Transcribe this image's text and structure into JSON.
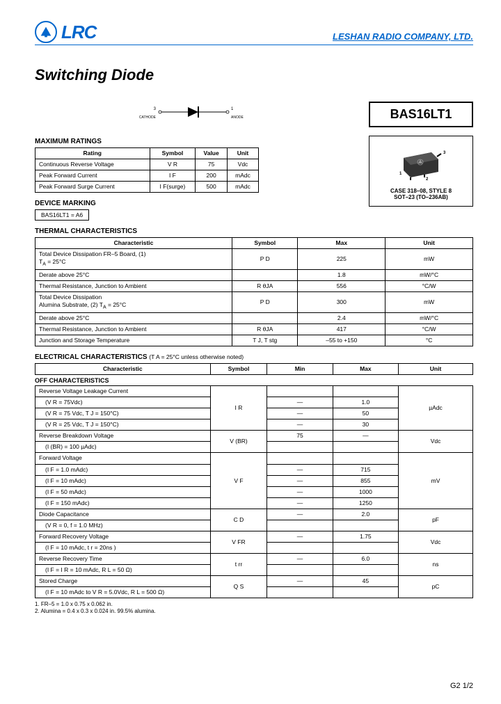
{
  "header": {
    "logo_text": "LRC",
    "company": "LESHAN RADIO COMPANY, LTD."
  },
  "title": "Switching Diode",
  "part_number": "BAS16LT1",
  "diode": {
    "cathode": "CATHODE",
    "anode": "ANODE",
    "pin3": "3",
    "pin1": "1"
  },
  "case": {
    "line1": "CASE 318–08, STYLE 8",
    "line2": "SOT–23   (TO–236AB)",
    "pins": "3"
  },
  "max_ratings": {
    "title": "MAXIMUM RATINGS",
    "headers": [
      "Rating",
      "Symbol",
      "Value",
      "Unit"
    ],
    "rows": [
      [
        "Continuous Reverse Voltage",
        "V R",
        "75",
        "Vdc"
      ],
      [
        "Peak Forward Current",
        "I F",
        "200",
        "mAdc"
      ],
      [
        "Peak Forward Surge Current",
        "I F(surge)",
        "500",
        "mAdc"
      ]
    ]
  },
  "device_marking": {
    "title": "DEVICE MARKING",
    "text": "BAS16LT1 = A6"
  },
  "thermal": {
    "title": "THERMAL CHARACTERISTICS",
    "headers": [
      "Characteristic",
      "Symbol",
      "Max",
      "Unit"
    ],
    "rows": [
      [
        "Total Device Dissipation FR–5 Board, (1)\nT_A = 25°C",
        "P D",
        "225",
        "mW"
      ],
      [
        "Derate above 25°C",
        "",
        "1.8",
        "mW/°C"
      ],
      [
        "Thermal Resistance, Junction to Ambient",
        "R θJA",
        "556",
        "°C/W"
      ],
      [
        "Total Device Dissipation\nAlumina Substrate, (2) T_A = 25°C",
        "P D",
        "300",
        "mW"
      ],
      [
        "Derate above 25°C",
        "",
        "2.4",
        "mW/°C"
      ],
      [
        "Thermal Resistance, Junction to Ambient",
        "R θJA",
        "417",
        "°C/W"
      ],
      [
        "Junction and Storage Temperature",
        "T J, T stg",
        "–55 to +150",
        "°C"
      ]
    ]
  },
  "electrical": {
    "title": "ELECTRICAL CHARACTERISTICS",
    "note": "(T A = 25°C unless otherwise noted)",
    "headers": [
      "Characteristic",
      "Symbol",
      "Min",
      "Max",
      "Unit"
    ],
    "off_title": "OFF CHARACTERISTICS",
    "rows": [
      {
        "c": "Reverse Voltage Leakage Current",
        "s": "I R",
        "min": "",
        "max": "",
        "u": "µAdc",
        "sub": [
          {
            "c": "(V R = 75Vdc)",
            "min": "—",
            "max": "1.0"
          },
          {
            "c": "(V R = 75 Vdc, T J = 150°C)",
            "min": "—",
            "max": "50"
          },
          {
            "c": "(V R = 25 Vdc, T J = 150°C)",
            "min": "—",
            "max": "30"
          }
        ]
      },
      {
        "c": "Reverse Breakdown Voltage",
        "s": "V (BR)",
        "min": "75",
        "max": "—",
        "u": "Vdc",
        "sub": [
          {
            "c": "(I (BR) = 100 µAdc)",
            "min": "",
            "max": ""
          }
        ]
      },
      {
        "c": "Forward Voltage",
        "s": "V F",
        "min": "",
        "max": "",
        "u": "mV",
        "sub": [
          {
            "c": "(I F = 1.0 mAdc)",
            "min": "—",
            "max": "715"
          },
          {
            "c": "(I F = 10 mAdc)",
            "min": "—",
            "max": "855"
          },
          {
            "c": "(I F = 50 mAdc)",
            "min": "—",
            "max": "1000"
          },
          {
            "c": "(I F = 150 mAdc)",
            "min": "—",
            "max": "1250"
          }
        ]
      },
      {
        "c": "Diode Capacitance",
        "s": "C D",
        "min": "—",
        "max": "2.0",
        "u": "pF",
        "sub": [
          {
            "c": "(V R = 0, f = 1.0 MHz)",
            "min": "",
            "max": ""
          }
        ]
      },
      {
        "c": "Forward Recovery Voltage",
        "s": "V FR",
        "min": "—",
        "max": "1.75",
        "u": "Vdc",
        "sub": [
          {
            "c": "(I F = 10 mAdc, t r = 20ns )",
            "min": "",
            "max": ""
          }
        ]
      },
      {
        "c": "Reverse Recovery Time",
        "s": "t rr",
        "min": "—",
        "max": "6.0",
        "u": "ns",
        "sub": [
          {
            "c": "(I F = I R = 10 mAdc, R L = 50 Ω)",
            "min": "",
            "max": ""
          }
        ]
      },
      {
        "c": "Stored Charge",
        "s": "Q S",
        "min": "—",
        "max": "45",
        "u": "pC",
        "sub": [
          {
            "c": "(I F = 10 mAdc to V R = 5.0Vdc, R L = 500 Ω)",
            "min": "",
            "max": ""
          }
        ]
      }
    ]
  },
  "notes": {
    "n1": "1. FR–5 = 1.0 x 0.75 x 0.062 in.",
    "n2": "2. Alumina = 0.4 x 0.3 x 0.024 in. 99.5% alumina."
  },
  "footer": "G2  1/2"
}
